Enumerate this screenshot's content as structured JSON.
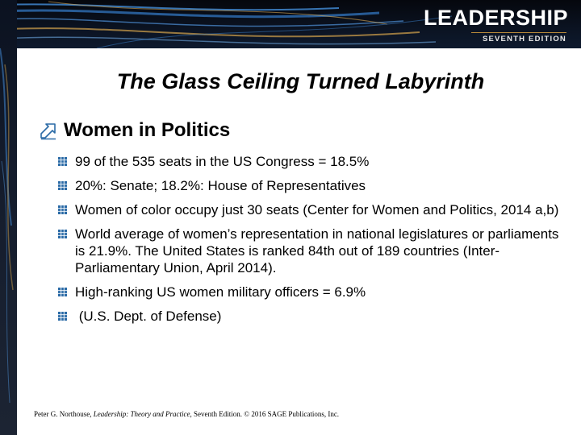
{
  "brand": {
    "title": "LEADERSHIP",
    "edition": "SEVENTH EDITION"
  },
  "slide": {
    "title": "The Glass Ceiling Turned Labyrinth",
    "heading": "Women in Politics",
    "heading_icon": "arrow-outline-icon",
    "bullet_icon": "grid-square-bullet-icon",
    "bullets": [
      "99 of the 535 seats in the US Congress = 18.5%",
      "20%: Senate; 18.2%: House of Representatives",
      "Women of color occupy just 30 seats (Center for Women and Politics, 2014 a,b)",
      "World average of women’s representation in national legislatures or parliaments is 21.9%.  The United States is ranked 84th out of 189 countries  (Inter-Parliamentary Union, April 2014).",
      "High-ranking US women military officers = 6.9%",
      " (U.S. Dept. of Defense)"
    ]
  },
  "footer": {
    "author": "Peter G. Northouse",
    "book": "Leadership: Theory and Practice",
    "rest": ", Seventh Edition. © 2016 SAGE Publications, Inc."
  },
  "colors": {
    "bullet": "#2a6aa6",
    "banner": "#0b1322",
    "accent": "#b98a3a"
  }
}
